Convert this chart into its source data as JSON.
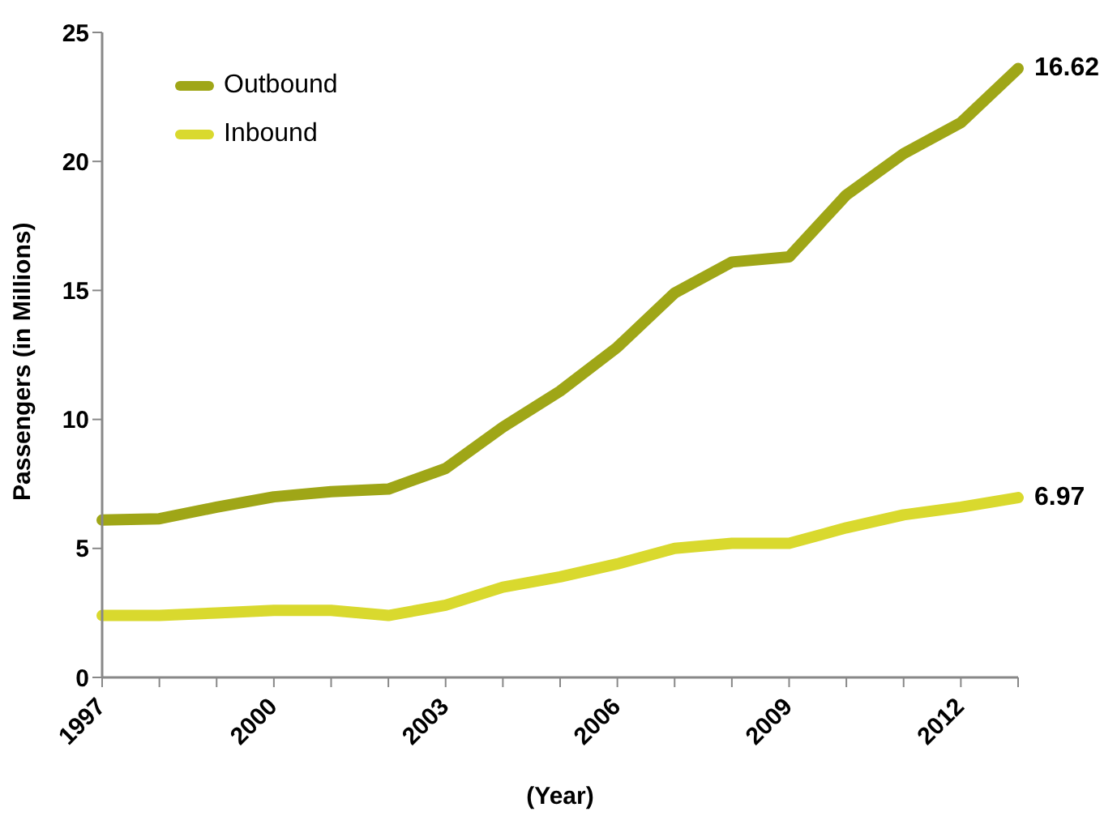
{
  "chart_data": {
    "type": "line",
    "xlabel": "(Year)",
    "ylabel": "Passengers (in Millions)",
    "categories": [
      "1997",
      null,
      null,
      "2000",
      null,
      null,
      "2003",
      null,
      null,
      "2006",
      null,
      null,
      "2009",
      null,
      null,
      "2012",
      null
    ],
    "series": [
      {
        "name": "Outbound",
        "color": "#9fa617",
        "values": [
          6.1,
          6.15,
          6.6,
          7.0,
          7.2,
          7.3,
          8.1,
          9.7,
          11.1,
          12.8,
          14.9,
          16.1,
          16.3,
          18.7,
          20.3,
          21.5,
          23.6
        ]
      },
      {
        "name": "Inbound",
        "color": "#d9d92e",
        "values": [
          2.4,
          2.4,
          2.5,
          2.6,
          2.6,
          2.4,
          2.8,
          3.5,
          3.9,
          4.4,
          5.0,
          5.2,
          5.2,
          5.8,
          6.3,
          6.6,
          6.97
        ],
        "value_labels": [
          null,
          null,
          null,
          null,
          null,
          null,
          null,
          null,
          null,
          null,
          null,
          null,
          null,
          null,
          null,
          null,
          "6.97"
        ]
      }
    ],
    "annotations": [
      "16.62"
    ],
    "ylim": [
      0,
      25
    ],
    "yticks": [
      0,
      5,
      10,
      15,
      20,
      25
    ],
    "grid": false,
    "legend": "top left",
    "marker": "none",
    "line_style": "solid"
  }
}
